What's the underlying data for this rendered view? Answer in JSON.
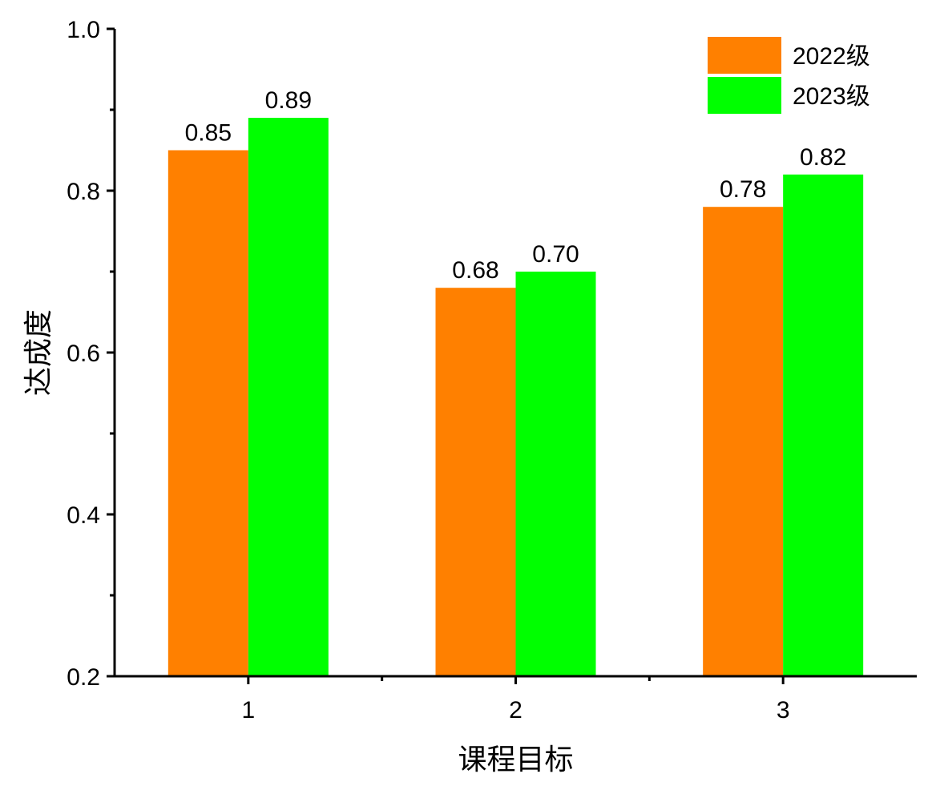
{
  "chart_data": {
    "type": "bar",
    "categories": [
      "1",
      "2",
      "3"
    ],
    "series": [
      {
        "name": "2022级",
        "values": [
          0.85,
          0.68,
          0.78
        ],
        "labels": [
          "0.85",
          "0.68",
          "0.78"
        ],
        "color": "#FF8000"
      },
      {
        "name": "2023级",
        "values": [
          0.89,
          0.7,
          0.82
        ],
        "labels": [
          "0.89",
          "0.70",
          "0.82"
        ],
        "color": "#00FF00"
      }
    ],
    "xlabel": "课程目标",
    "ylabel": "达成度",
    "ylim": [
      0.2,
      1.0
    ],
    "yticks": [
      "0.2",
      "0.4",
      "0.6",
      "0.8",
      "1.0"
    ],
    "grid": false,
    "legend_position": "top-right"
  }
}
